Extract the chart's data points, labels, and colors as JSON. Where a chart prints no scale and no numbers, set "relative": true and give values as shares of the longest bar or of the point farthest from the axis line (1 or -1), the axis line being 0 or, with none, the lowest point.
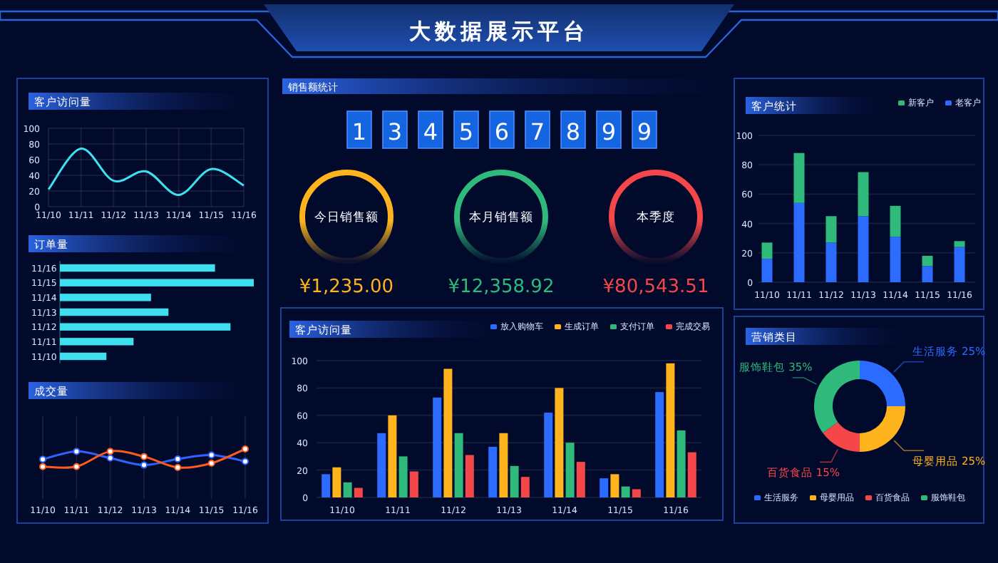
{
  "chart_data": [
    {
      "type": "other",
      "title": "大数据展示平台"
    },
    {
      "type": "line",
      "title": "客户访问量",
      "categories": [
        "11/10",
        "11/11",
        "11/12",
        "11/13",
        "11/14",
        "11/15",
        "11/16"
      ],
      "values": [
        22,
        74,
        33,
        45,
        15,
        48,
        27
      ],
      "color": "#3ee0f0",
      "ylim": [
        0,
        100
      ],
      "yticks": [
        0,
        20,
        40,
        60,
        80,
        100
      ],
      "grid": true,
      "marker": "none"
    },
    {
      "type": "bar",
      "title": "订单量",
      "orientation": "horizontal",
      "relative": true,
      "categories": [
        "11/16",
        "11/15",
        "11/14",
        "11/13",
        "11/12",
        "11/11",
        "11/10"
      ],
      "values": [
        0.8,
        1,
        0.47,
        0.56,
        0.88,
        0.38,
        0.24
      ],
      "color": "#3ee0f0"
    },
    {
      "type": "line",
      "title": "成交量",
      "relative": true,
      "categories": [
        "11/10",
        "11/11",
        "11/12",
        "11/13",
        "11/14",
        "11/15",
        "11/16"
      ],
      "grid": "x",
      "marker": "circle",
      "series": [
        {
          "color": "#2f62ff",
          "values": [
            0.44,
            0.87,
            0.51,
            0.13,
            0.46,
            0.67,
            0.33
          ]
        },
        {
          "color": "#ff5a1e",
          "values": [
            0.05,
            0.05,
            0.87,
            0.59,
            0,
            0.23,
            1
          ]
        }
      ]
    },
    {
      "type": "other",
      "title": "销售额统计",
      "annotations": [
        "134567899",
        "今日销售额",
        "¥1,235.00",
        "本月销售额",
        "¥12,358.92",
        "本季度",
        "¥80,543.51"
      ],
      "colors": [
        "#ffb41e",
        "#2fba7c",
        "#f5474a"
      ]
    },
    {
      "type": "bar",
      "title": "客户访问量",
      "categories": [
        "11/10",
        "11/11",
        "11/12",
        "11/13",
        "11/14",
        "11/15",
        "11/16"
      ],
      "ylim": [
        0,
        100
      ],
      "yticks": [
        0,
        20,
        40,
        60,
        80,
        100
      ],
      "grid": "y",
      "legend": "top right",
      "series": [
        {
          "name": "放入购物车",
          "color": "#2b6bff",
          "values": [
            17,
            47,
            73,
            37,
            62,
            14,
            77
          ]
        },
        {
          "name": "生成订单",
          "color": "#ffb41e",
          "values": [
            22,
            60,
            94,
            47,
            80,
            17,
            98
          ]
        },
        {
          "name": "支付订单",
          "color": "#2fba7c",
          "values": [
            11,
            30,
            47,
            23,
            40,
            8,
            49
          ]
        },
        {
          "name": "完成交易",
          "color": "#f5474a",
          "values": [
            7,
            19,
            31,
            15,
            26,
            6,
            33
          ]
        }
      ]
    },
    {
      "type": "bar",
      "title": "客户统计",
      "stacked": true,
      "categories": [
        "11/10",
        "11/11",
        "11/12",
        "11/13",
        "11/14",
        "11/15",
        "11/16"
      ],
      "ylim": [
        0,
        100
      ],
      "yticks": [
        0,
        20,
        40,
        60,
        80,
        100
      ],
      "grid": "y",
      "legend": "top right",
      "series": [
        {
          "name": "老客户",
          "color": "#2b6bff",
          "values": [
            16,
            54,
            27,
            45,
            31,
            11,
            24
          ]
        },
        {
          "name": "新客户",
          "color": "#2fba7c",
          "values": [
            11,
            34,
            18,
            30,
            21,
            7,
            4
          ]
        }
      ]
    },
    {
      "type": "donut",
      "title": "营销类目",
      "legend": "bottom",
      "categories": [
        "生活服务",
        "母婴用品",
        "百货食品",
        "服饰鞋包"
      ],
      "values": [
        25,
        25,
        15,
        35
      ],
      "colors": [
        "#2b6bff",
        "#ffb41e",
        "#f5474a",
        "#2fba7c"
      ],
      "value_labels": [
        "生活服务 25%",
        "母婴用品 25%",
        "百货食品 15%",
        "服饰鞋包 35%"
      ]
    }
  ]
}
